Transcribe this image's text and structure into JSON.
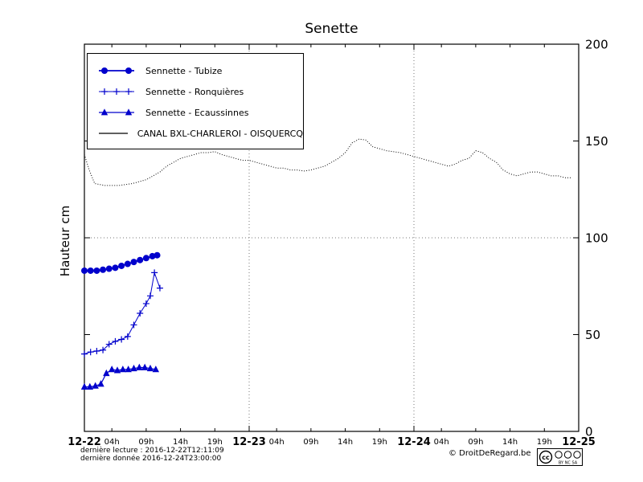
{
  "chart_data": {
    "type": "line",
    "title": "Senette",
    "ylabel": "Hauteur cm",
    "x_axis": {
      "days": [
        "12-22",
        "12-23",
        "12-24",
        "12-25"
      ],
      "hour_labels": [
        "04h",
        "09h",
        "14h",
        "19h"
      ],
      "range_hours": [
        0,
        72
      ]
    },
    "y_axis": {
      "ticks": [
        0,
        50,
        100,
        150,
        200
      ],
      "range": [
        0,
        200
      ],
      "side": "right"
    },
    "grid": {
      "vertical_day_lines": [
        24,
        48
      ],
      "horizontal_at": [
        100
      ]
    },
    "colors": {
      "series_blue": "#0000cc",
      "canal_black": "#000000"
    },
    "series": [
      {
        "id": "tubize",
        "name": "Sennette - Tubize",
        "marker": "circle",
        "style": "solid",
        "color": "#0000cc",
        "width": 1.8,
        "points": [
          [
            0,
            83
          ],
          [
            0.9,
            83
          ],
          [
            1.8,
            83
          ],
          [
            2.7,
            83.5
          ],
          [
            3.6,
            84
          ],
          [
            4.5,
            84.5
          ],
          [
            5.4,
            85.5
          ],
          [
            6.3,
            86.5
          ],
          [
            7.2,
            87.5
          ],
          [
            8.1,
            88.5
          ],
          [
            9.0,
            89.5
          ],
          [
            9.9,
            90.5
          ],
          [
            10.6,
            91
          ]
        ]
      },
      {
        "id": "ronquieres",
        "name": "Sennette - Ronquières",
        "marker": "plus",
        "style": "solid",
        "color": "#0000cc",
        "width": 1,
        "points": [
          [
            0,
            40
          ],
          [
            0.9,
            41
          ],
          [
            1.8,
            41.5
          ],
          [
            2.7,
            42
          ],
          [
            3.6,
            45
          ],
          [
            4.5,
            46.5
          ],
          [
            5.4,
            47.5
          ],
          [
            6.3,
            49
          ],
          [
            7.2,
            55
          ],
          [
            8.1,
            61
          ],
          [
            9.0,
            66
          ],
          [
            9.6,
            70
          ],
          [
            10.2,
            82
          ],
          [
            11.0,
            74
          ]
        ]
      },
      {
        "id": "ecaussinnes",
        "name": "Sennette - Ecaussinnes",
        "marker": "triangle",
        "style": "solid",
        "color": "#0000cc",
        "width": 1.2,
        "points": [
          [
            0,
            23
          ],
          [
            0.8,
            23
          ],
          [
            1.6,
            23.5
          ],
          [
            2.4,
            24.5
          ],
          [
            3.2,
            30
          ],
          [
            4.0,
            32
          ],
          [
            4.8,
            31.5
          ],
          [
            5.6,
            32
          ],
          [
            6.4,
            32
          ],
          [
            7.2,
            32.5
          ],
          [
            8.0,
            33
          ],
          [
            8.8,
            33
          ],
          [
            9.6,
            32.5
          ],
          [
            10.4,
            32
          ]
        ]
      },
      {
        "id": "canal",
        "name": "CANAL BXL-CHARLEROI  - OISQUERCQ",
        "marker": "none",
        "style": "dotted",
        "color": "#000000",
        "width": 1,
        "points": [
          [
            0,
            143
          ],
          [
            0.7,
            135
          ],
          [
            1.5,
            128
          ],
          [
            3,
            127
          ],
          [
            5,
            127
          ],
          [
            6,
            127.5
          ],
          [
            7,
            128
          ],
          [
            8,
            129
          ],
          [
            9,
            130
          ],
          [
            10,
            132
          ],
          [
            11,
            134
          ],
          [
            12,
            137
          ],
          [
            13,
            139
          ],
          [
            14,
            141
          ],
          [
            15,
            142
          ],
          [
            16,
            143
          ],
          [
            17,
            144
          ],
          [
            18,
            144
          ],
          [
            19,
            144.5
          ],
          [
            20,
            143
          ],
          [
            21,
            142
          ],
          [
            22,
            141
          ],
          [
            23,
            140
          ],
          [
            24,
            140
          ],
          [
            25,
            139
          ],
          [
            26,
            138
          ],
          [
            27,
            137
          ],
          [
            28,
            136
          ],
          [
            29,
            136
          ],
          [
            30,
            135
          ],
          [
            31,
            135
          ],
          [
            32,
            134.5
          ],
          [
            33,
            135
          ],
          [
            34,
            136
          ],
          [
            35,
            137
          ],
          [
            36,
            139
          ],
          [
            37,
            141
          ],
          [
            38,
            144
          ],
          [
            39,
            149
          ],
          [
            40,
            151
          ],
          [
            41,
            150.5
          ],
          [
            42,
            147
          ],
          [
            43,
            146
          ],
          [
            44,
            145
          ],
          [
            45,
            144.5
          ],
          [
            46,
            144
          ],
          [
            47,
            143
          ],
          [
            48,
            142
          ],
          [
            49,
            141
          ],
          [
            50,
            140
          ],
          [
            51,
            139
          ],
          [
            52,
            138
          ],
          [
            53,
            137
          ],
          [
            54,
            138
          ],
          [
            55,
            140
          ],
          [
            56,
            141
          ],
          [
            57,
            145
          ],
          [
            58,
            144
          ],
          [
            59,
            141
          ],
          [
            60,
            139
          ],
          [
            61,
            135
          ],
          [
            62,
            133
          ],
          [
            63,
            132
          ],
          [
            64,
            133
          ],
          [
            65,
            134
          ],
          [
            66,
            134
          ],
          [
            67,
            133
          ],
          [
            68,
            132
          ],
          [
            69,
            132
          ],
          [
            70,
            131
          ],
          [
            71,
            131
          ]
        ]
      }
    ]
  },
  "footer": {
    "last_read": "dernière lecture : 2016-12-22T12:11:09",
    "last_data": "dernière donnée  2016-12-24T23:00:00",
    "copyright": "© DroitDeRegard.be",
    "license": {
      "cc": "cc",
      "by_nc_sa": "BY NC SA"
    }
  }
}
